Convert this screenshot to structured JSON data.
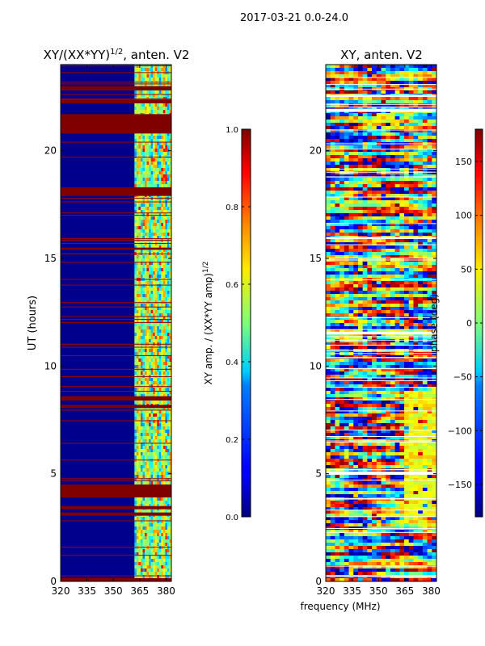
{
  "suptitle": "2017-03-21 0.0-24.0",
  "shared_xlabel": "frequency (MHz)",
  "chart_data": [
    {
      "type": "heatmap",
      "title_main": "XY/(XX*YY)",
      "title_exp": "1/2",
      "title_suffix": ", anten. V2",
      "xlabel": "",
      "ylabel": "UT (hours)",
      "xlim": [
        320,
        383
      ],
      "ylim": [
        0,
        24
      ],
      "xticks": [
        "320",
        "335",
        "350",
        "365",
        "380"
      ],
      "xtick_values": [
        320,
        335,
        350,
        365,
        380
      ],
      "yticks": [
        "0",
        "5",
        "10",
        "15",
        "20"
      ],
      "ytick_values": [
        0,
        5,
        10,
        15,
        20
      ],
      "colorbar": {
        "label_main": "XY amp. / (XX*YY amp)",
        "label_exp": "1/2",
        "range": [
          0.0,
          1.0
        ],
        "ticks": [
          "0.0",
          "0.2",
          "0.4",
          "0.6",
          "0.8",
          "1.0"
        ],
        "tick_values": [
          0.0,
          0.2,
          0.4,
          0.6,
          0.8,
          1.0
        ],
        "colormap": "jet"
      },
      "flagged_hours": [
        [
          0.0,
          0.15
        ],
        [
          3.05,
          3.2
        ],
        [
          3.35,
          3.5
        ],
        [
          3.9,
          4.5
        ],
        [
          8.05,
          8.2
        ],
        [
          8.4,
          8.6
        ],
        [
          15.4,
          15.5
        ],
        [
          17.9,
          18.3
        ],
        [
          20.8,
          21.7
        ],
        [
          22.2,
          22.35
        ],
        [
          22.8,
          23.0
        ]
      ],
      "active_band_mhz": [
        362,
        383
      ]
    },
    {
      "type": "heatmap",
      "title_main": "XY, anten. V2",
      "xlabel": "",
      "ylabel": "",
      "xlim": [
        320,
        383
      ],
      "ylim": [
        0,
        24
      ],
      "xticks": [
        "320",
        "335",
        "350",
        "365",
        "380"
      ],
      "xtick_values": [
        320,
        335,
        350,
        365,
        380
      ],
      "yticks": [
        "0",
        "5",
        "10",
        "15",
        "20"
      ],
      "ytick_values": [
        0,
        5,
        10,
        15,
        20
      ],
      "colorbar": {
        "label_main": "phase (deg)",
        "range": [
          -180,
          180
        ],
        "ticks": [
          "−150",
          "−100",
          "−50",
          "0",
          "50",
          "100",
          "150"
        ],
        "tick_values": [
          -150,
          -100,
          -50,
          0,
          50,
          100,
          150
        ],
        "colormap": "jet"
      },
      "flagged_hours": [
        [
          21.8,
          21.95
        ],
        [
          22.5,
          22.6
        ],
        [
          15.9,
          16.0
        ],
        [
          11.5,
          11.6
        ],
        [
          5.0,
          5.1
        ]
      ]
    }
  ]
}
